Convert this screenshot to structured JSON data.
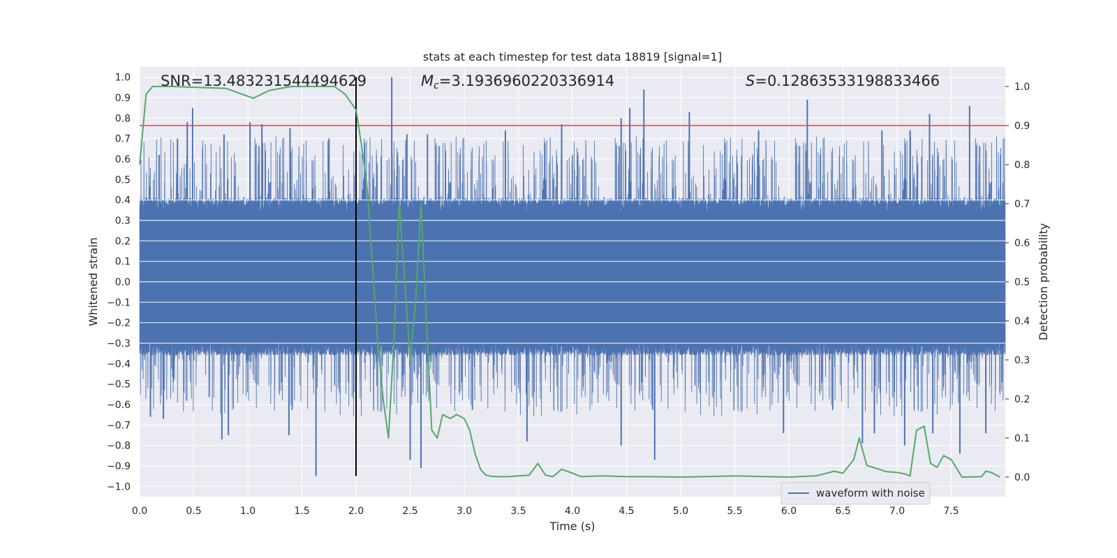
{
  "chart_data": {
    "type": "line",
    "title": "stats at each timestep for test data 18819 [signal=1]",
    "xlabel": "Time (s)",
    "ylabel": "Whitened strain",
    "y2label": "Detection probability",
    "xlim": [
      0.0,
      8.0
    ],
    "ylim": [
      -1.05,
      1.05
    ],
    "y2lim": [
      -0.05,
      1.05
    ],
    "xticks": [
      0.0,
      0.5,
      1.0,
      1.5,
      2.0,
      2.5,
      3.0,
      3.5,
      4.0,
      4.5,
      5.0,
      5.5,
      6.0,
      6.5,
      7.0,
      7.5
    ],
    "yticks": [
      -1.0,
      -0.9,
      -0.8,
      -0.7,
      -0.6,
      -0.5,
      -0.4,
      -0.3,
      -0.2,
      -0.1,
      0.0,
      0.1,
      0.2,
      0.3,
      0.4,
      0.5,
      0.6,
      0.7,
      0.8,
      0.9,
      1.0
    ],
    "y2ticks": [
      0.0,
      0.1,
      0.2,
      0.3,
      0.4,
      0.5,
      0.6,
      0.7,
      0.8,
      0.9,
      1.0
    ],
    "grid": true,
    "legend": {
      "position": "bottom-right",
      "entries": [
        "waveform with noise"
      ]
    },
    "annotations": {
      "snr": {
        "prefix": "SNR=",
        "value": "13.483231544494629"
      },
      "mc": {
        "symbol": "M",
        "subscript": "c",
        "prefix": "=",
        "value": "3.1936960220336914"
      },
      "s": {
        "symbol": "S",
        "prefix": "=",
        "value": "0.12863533198833466"
      }
    },
    "waveform": {
      "name": "waveform with noise",
      "color": "#4c72b0",
      "sample_rate_hz": 2048,
      "band_low": -0.36,
      "band_high": 0.41,
      "peaks": [
        {
          "x": 0.49,
          "y": 0.85
        },
        {
          "x": 0.18,
          "y": 0.62
        },
        {
          "x": 0.35,
          "y": 0.7
        },
        {
          "x": 0.44,
          "y": 0.78
        },
        {
          "x": 0.78,
          "y": 0.72
        },
        {
          "x": 1.02,
          "y": 0.78
        },
        {
          "x": 1.13,
          "y": 0.77
        },
        {
          "x": 1.39,
          "y": 0.75
        },
        {
          "x": 1.75,
          "y": 0.7
        },
        {
          "x": 2.33,
          "y": 1.0
        },
        {
          "x": 2.47,
          "y": 0.72
        },
        {
          "x": 2.66,
          "y": 0.72
        },
        {
          "x": 3.38,
          "y": 0.74
        },
        {
          "x": 3.9,
          "y": 0.77
        },
        {
          "x": 4.45,
          "y": 0.8
        },
        {
          "x": 4.53,
          "y": 0.85
        },
        {
          "x": 4.66,
          "y": 0.94
        },
        {
          "x": 5.08,
          "y": 0.83
        },
        {
          "x": 5.72,
          "y": 0.74
        },
        {
          "x": 6.17,
          "y": 0.89
        },
        {
          "x": 6.86,
          "y": 0.74
        },
        {
          "x": 7.12,
          "y": 0.74
        },
        {
          "x": 7.3,
          "y": 0.82
        },
        {
          "x": 7.67,
          "y": 0.86
        }
      ],
      "troughs": [
        {
          "x": 0.1,
          "y": -0.66
        },
        {
          "x": 0.22,
          "y": -0.67
        },
        {
          "x": 0.76,
          "y": -0.77
        },
        {
          "x": 0.82,
          "y": -0.75
        },
        {
          "x": 1.38,
          "y": -0.75
        },
        {
          "x": 1.63,
          "y": -0.95
        },
        {
          "x": 2.5,
          "y": -0.87
        },
        {
          "x": 2.6,
          "y": -0.91
        },
        {
          "x": 3.58,
          "y": -0.78
        },
        {
          "x": 4.45,
          "y": -0.8
        },
        {
          "x": 4.76,
          "y": -0.87
        },
        {
          "x": 5.95,
          "y": -0.74
        },
        {
          "x": 6.68,
          "y": -0.79
        },
        {
          "x": 6.79,
          "y": -0.74
        },
        {
          "x": 7.07,
          "y": -0.8
        },
        {
          "x": 7.33,
          "y": -0.74
        },
        {
          "x": 7.58,
          "y": -0.84
        },
        {
          "x": 7.82,
          "y": -0.74
        }
      ]
    },
    "detection_probability": {
      "color": "#55a868",
      "x": [
        0.0,
        0.06,
        0.12,
        0.3,
        0.8,
        1.05,
        1.2,
        1.4,
        1.6,
        1.8,
        1.9,
        2.0,
        2.05,
        2.1,
        2.15,
        2.2,
        2.25,
        2.3,
        2.35,
        2.4,
        2.45,
        2.5,
        2.55,
        2.6,
        2.65,
        2.7,
        2.75,
        2.8,
        2.87,
        2.93,
        3.0,
        3.05,
        3.1,
        3.15,
        3.2,
        3.25,
        3.3,
        3.35,
        3.4,
        3.6,
        3.68,
        3.75,
        3.82,
        3.9,
        4.0,
        4.08,
        4.15,
        4.3,
        4.4,
        4.5,
        4.7,
        5.0,
        5.2,
        5.5,
        5.8,
        6.0,
        6.25,
        6.35,
        6.42,
        6.5,
        6.6,
        6.65,
        6.72,
        6.9,
        7.0,
        7.07,
        7.12,
        7.18,
        7.25,
        7.31,
        7.37,
        7.43,
        7.5,
        7.6,
        7.78,
        7.82,
        7.87,
        7.95
      ],
      "y": [
        0.8,
        0.98,
        1.0,
        1.0,
        0.995,
        0.97,
        0.99,
        1.0,
        1.0,
        1.0,
        0.98,
        0.94,
        0.85,
        0.75,
        0.55,
        0.35,
        0.2,
        0.1,
        0.35,
        0.7,
        0.5,
        0.3,
        0.45,
        0.7,
        0.4,
        0.12,
        0.1,
        0.16,
        0.15,
        0.16,
        0.15,
        0.12,
        0.06,
        0.02,
        0.005,
        0.002,
        0.001,
        0.001,
        0.001,
        0.005,
        0.035,
        0.005,
        0.001,
        0.02,
        0.01,
        0.001,
        0.002,
        0.003,
        0.002,
        0.001,
        0.001,
        0.0,
        0.001,
        0.003,
        0.001,
        0.0,
        0.003,
        0.01,
        0.015,
        0.01,
        0.045,
        0.1,
        0.03,
        0.014,
        0.012,
        0.008,
        0.003,
        0.12,
        0.13,
        0.035,
        0.025,
        0.055,
        0.045,
        0.0,
        0.001,
        0.015,
        0.012,
        0.0
      ]
    },
    "threshold": {
      "color": "#c44e52",
      "y2": 0.9
    },
    "marker": {
      "color": "#000000",
      "x": 2.0,
      "y_top": 1.0,
      "y_bottom": -0.95
    }
  }
}
